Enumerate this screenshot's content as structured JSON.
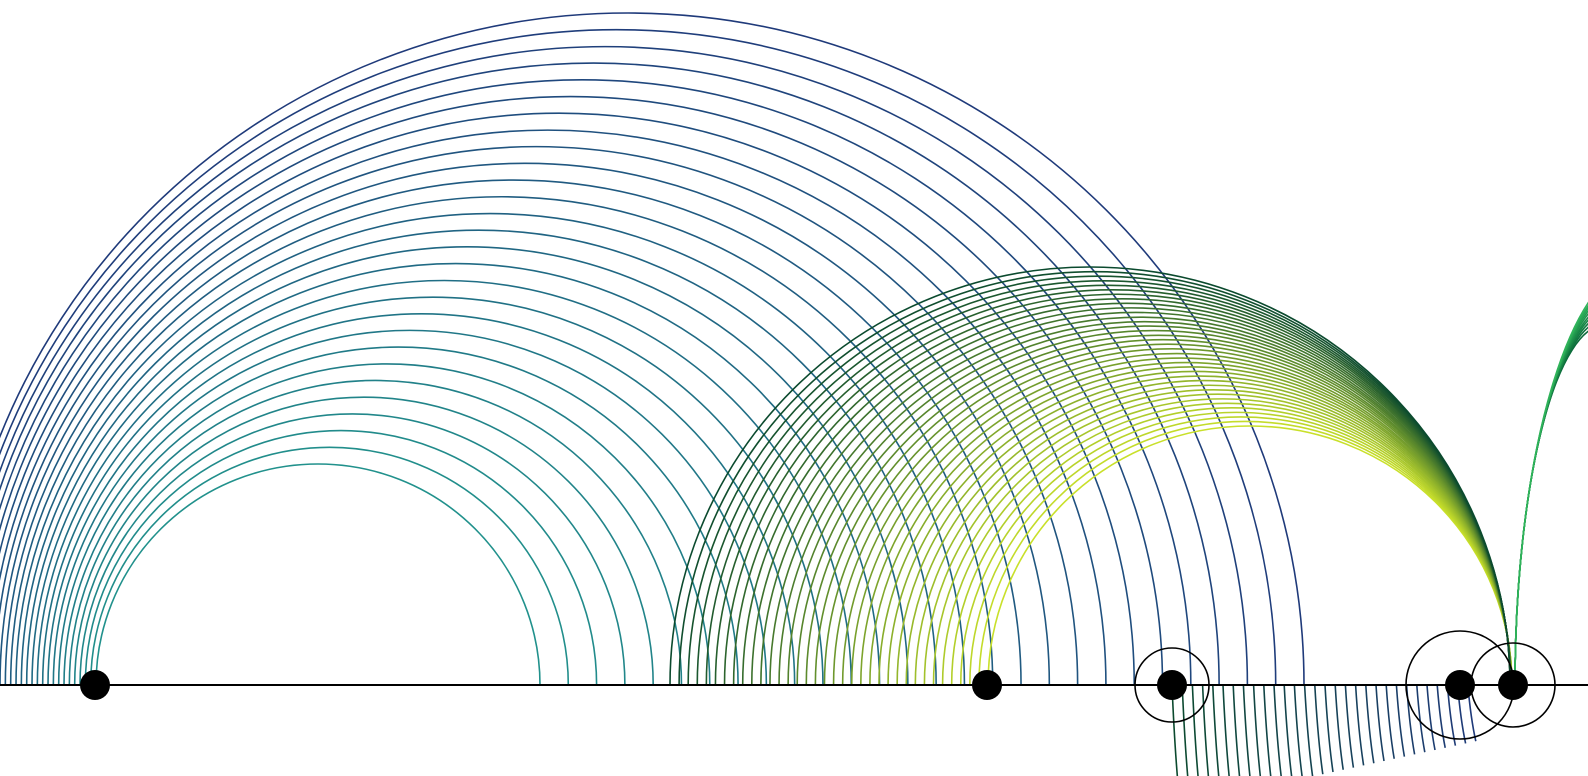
{
  "diagram": {
    "background": "#ffffff",
    "axis_color": "#000000",
    "point_color": "#000000",
    "circle_color": "#000000",
    "points": [
      {
        "id": "p1"
      },
      {
        "id": "p2"
      },
      {
        "id": "p3"
      },
      {
        "id": "p4"
      },
      {
        "id": "p5"
      }
    ],
    "circle_count": 3,
    "arc_families": [
      {
        "name": "family-a",
        "direction": "up",
        "arc_count": 28,
        "color_start": "#21918c",
        "color_end": "#1f3a7a"
      },
      {
        "name": "family-b",
        "direction": "up",
        "arc_count": 36,
        "color_start": "#c9e02a",
        "color_end": "#0b4a2e"
      },
      {
        "name": "family-c",
        "direction": "up",
        "arc_count": 10,
        "color_start": "#0b6b3a",
        "color_end": "#2fb35a"
      },
      {
        "name": "family-d",
        "direction": "down",
        "arc_count": 30,
        "color_start": "#0b4a2e",
        "color_end": "#1f3a7a"
      }
    ]
  }
}
